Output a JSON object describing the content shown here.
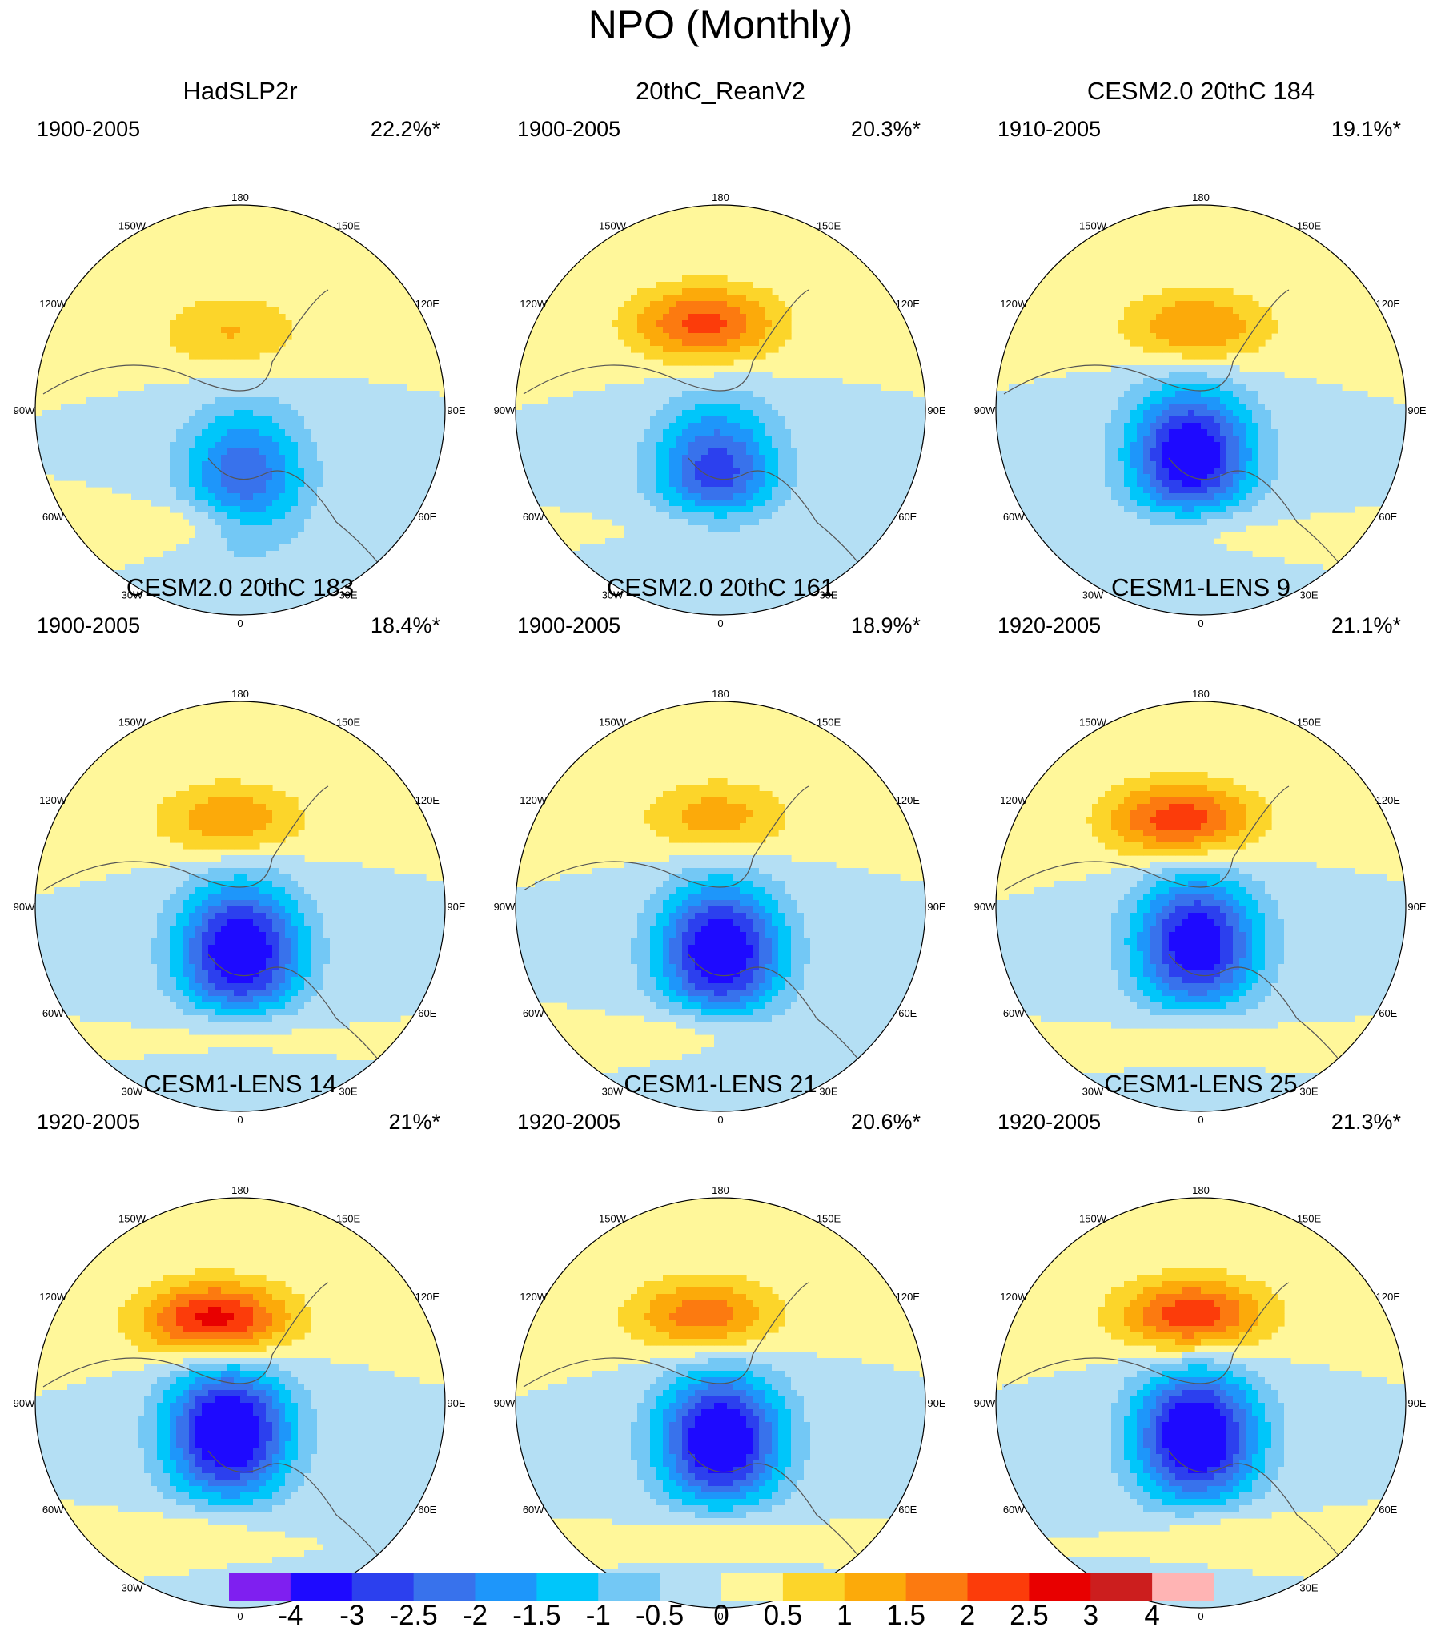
{
  "figure": {
    "title": "NPO (Monthly)"
  },
  "panels": [
    {
      "title": "HadSLP2r",
      "years": "1900-2005",
      "variance": "22.2%*",
      "pattern": {
        "hx": -0.05,
        "hy": -0.38,
        "hs": 1.05,
        "lx": 0.02,
        "ly": 0.32,
        "ls": -2.4,
        "ax": -0.2,
        "ay": 0.55,
        "as": 0.7
      }
    },
    {
      "title": "20thC_ReanV2",
      "years": "1900-2005",
      "variance": "20.3%*",
      "pattern": {
        "hx": -0.08,
        "hy": -0.42,
        "hs": 2.2,
        "lx": -0.02,
        "ly": 0.3,
        "ls": -2.8,
        "ax": -0.05,
        "ay": 0.55,
        "as": 0.9
      }
    },
    {
      "title": "CESM2.0 20thC 184",
      "years": "1910-2005",
      "variance": "19.1%*",
      "pattern": {
        "hx": -0.02,
        "hy": -0.4,
        "hs": 1.6,
        "lx": -0.05,
        "ly": 0.22,
        "ls": -3.7,
        "ax": 0.0,
        "ay": 0.58,
        "as": 0.85
      }
    },
    {
      "title": "CESM2.0 20thC 183",
      "years": "1900-2005",
      "variance": "18.4%*",
      "pattern": {
        "hx": -0.05,
        "hy": -0.42,
        "hs": 1.45,
        "lx": 0.0,
        "ly": 0.22,
        "ls": -3.8,
        "ax": 0.0,
        "ay": 0.6,
        "as": 0.9
      }
    },
    {
      "title": "CESM2.0 20thC 161",
      "years": "1900-2005",
      "variance": "18.9%*",
      "pattern": {
        "hx": -0.02,
        "hy": -0.43,
        "hs": 1.3,
        "lx": 0.0,
        "ly": 0.22,
        "ls": -3.8,
        "ax": -0.08,
        "ay": 0.6,
        "as": 0.85
      }
    },
    {
      "title": "CESM1-LENS 9",
      "years": "1920-2005",
      "variance": "21.1%*",
      "pattern": {
        "hx": -0.1,
        "hy": -0.42,
        "hs": 2.4,
        "lx": -0.02,
        "ly": 0.18,
        "ls": -3.6,
        "ax": -0.02,
        "ay": 0.62,
        "as": 0.8
      }
    },
    {
      "title": "CESM1-LENS 14",
      "years": "1920-2005",
      "variance": "21%*",
      "pattern": {
        "hx": -0.12,
        "hy": -0.4,
        "hs": 2.9,
        "lx": -0.06,
        "ly": 0.14,
        "ls": -4.0,
        "ax": -0.15,
        "ay": 0.62,
        "as": 0.7
      }
    },
    {
      "title": "CESM1-LENS 21",
      "years": "1920-2005",
      "variance": "20.6%*",
      "pattern": {
        "hx": -0.08,
        "hy": -0.42,
        "hs": 1.9,
        "lx": 0.0,
        "ly": 0.18,
        "ls": -3.9,
        "ax": 0.0,
        "ay": 0.62,
        "as": 0.75
      }
    },
    {
      "title": "CESM1-LENS 25",
      "years": "1920-2005",
      "variance": "21.3%*",
      "pattern": {
        "hx": -0.04,
        "hy": -0.42,
        "hs": 2.5,
        "lx": -0.02,
        "ly": 0.16,
        "ls": -4.0,
        "ax": 0.05,
        "ay": 0.62,
        "as": 0.8
      }
    }
  ],
  "longitude_labels": [
    "180",
    "150E",
    "120E",
    "90E",
    "60E",
    "30E",
    "0",
    "30W",
    "60W",
    "90W",
    "120W",
    "150W"
  ],
  "colorbar": {
    "levels": [
      "-4",
      "-3",
      "-2.5",
      "-2",
      "-1.5",
      "-1",
      "-0.5",
      "0",
      "0.5",
      "1",
      "1.5",
      "2",
      "2.5",
      "3",
      "4"
    ],
    "colors": [
      "#7f1ff0",
      "#1e0aff",
      "#2c40ee",
      "#3872ec",
      "#1e96fa",
      "#00c6fa",
      "#73c8f5",
      "#b4dff4",
      "#fff79a",
      "#fcd52a",
      "#fcaa0a",
      "#fc7a10",
      "#fc3c0a",
      "#e80000",
      "#cc1e1e",
      "#ffb4b4"
    ]
  }
}
